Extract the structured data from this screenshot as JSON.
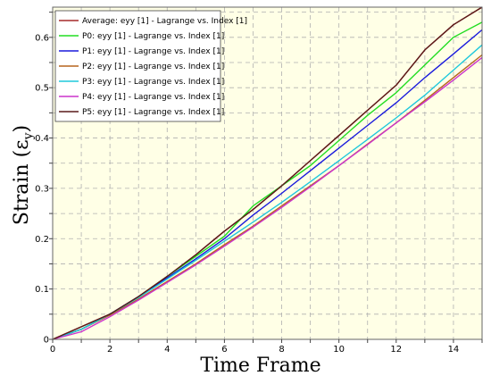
{
  "chart_data": {
    "type": "line",
    "title": "",
    "xlabel": "Time Frame",
    "ylabel": "Strain (εy)",
    "ylabel_main": "Strain (ε",
    "ylabel_sub": "y",
    "ylabel_close": ")",
    "xlim": [
      0,
      15
    ],
    "ylim": [
      0,
      0.66
    ],
    "xticks": [
      0,
      2,
      4,
      6,
      8,
      10,
      12,
      14
    ],
    "yticks": [
      0,
      0.1,
      0.2,
      0.3,
      0.4,
      0.5,
      0.6
    ],
    "grid": true,
    "legend_position": "top-left",
    "plot_background": "#ffffe6",
    "x": [
      0,
      1,
      2,
      3,
      4,
      5,
      6,
      7,
      8,
      9,
      10,
      11,
      12,
      13,
      14,
      15
    ],
    "series": [
      {
        "name": "Average: eyy [1] - Lagrange vs. Index [1]",
        "color": "#a52a2a",
        "values": [
          0,
          0.025,
          0.05,
          0.085,
          0.125,
          0.168,
          0.215,
          0.258,
          0.305,
          0.355,
          0.405,
          0.455,
          0.505,
          0.575,
          0.625,
          0.67
        ]
      },
      {
        "name": "P0: eyy [1] - Lagrange vs. Index [1]",
        "color": "#22dd22",
        "values": [
          0,
          0.02,
          0.05,
          0.085,
          0.125,
          0.165,
          0.205,
          0.265,
          0.305,
          0.345,
          0.395,
          0.445,
          0.49,
          0.545,
          0.6,
          0.63
        ]
      },
      {
        "name": "P1: eyy [1] - Lagrange vs. Index [1]",
        "color": "#1a1adc",
        "values": [
          0,
          0.02,
          0.05,
          0.085,
          0.122,
          0.16,
          0.2,
          0.247,
          0.29,
          0.335,
          0.38,
          0.425,
          0.47,
          0.52,
          0.567,
          0.615
        ]
      },
      {
        "name": "P2: eyy [1] - Lagrange vs. Index [1]",
        "color": "#b5651d",
        "values": [
          0,
          0.02,
          0.048,
          0.08,
          0.115,
          0.15,
          0.188,
          0.225,
          0.265,
          0.305,
          0.345,
          0.388,
          0.43,
          0.475,
          0.52,
          0.565
        ]
      },
      {
        "name": "P3: eyy [1] - Lagrange vs. Index [1]",
        "color": "#1ec8dc",
        "values": [
          0,
          0.02,
          0.05,
          0.083,
          0.12,
          0.157,
          0.195,
          0.233,
          0.272,
          0.313,
          0.355,
          0.397,
          0.44,
          0.485,
          0.535,
          0.585
        ]
      },
      {
        "name": "P4: eyy [1] - Lagrange vs. Index [1]",
        "color": "#cc33cc",
        "values": [
          0,
          0.015,
          0.045,
          0.078,
          0.113,
          0.148,
          0.185,
          0.223,
          0.262,
          0.303,
          0.345,
          0.387,
          0.43,
          0.472,
          0.515,
          0.56
        ]
      },
      {
        "name": "P5: eyy [1] - Lagrange vs. Index [1]",
        "color": "#5a1a1a",
        "values": [
          0,
          0.025,
          0.05,
          0.085,
          0.125,
          0.168,
          0.215,
          0.258,
          0.305,
          0.355,
          0.405,
          0.455,
          0.505,
          0.575,
          0.625,
          0.67
        ]
      }
    ]
  }
}
